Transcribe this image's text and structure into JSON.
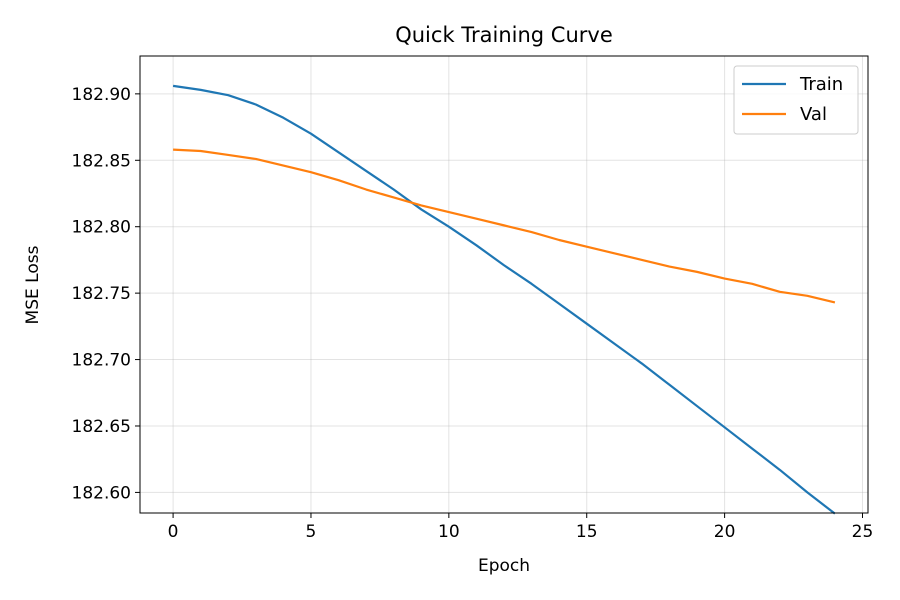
{
  "chart_data": {
    "type": "line",
    "title": "Quick Training Curve",
    "xlabel": "Epoch",
    "ylabel": "MSE Loss",
    "xlim": [
      -1.2,
      25.2
    ],
    "ylim": [
      182.5845,
      182.9285
    ],
    "xticks": [
      0,
      5,
      10,
      15,
      20,
      25
    ],
    "yticks": [
      182.6,
      182.65,
      182.7,
      182.75,
      182.8,
      182.85,
      182.9
    ],
    "grid": true,
    "legend_position": "top-right",
    "x": [
      0,
      1,
      2,
      3,
      4,
      5,
      6,
      7,
      8,
      9,
      10,
      11,
      12,
      13,
      14,
      15,
      16,
      17,
      18,
      19,
      20,
      21,
      22,
      23,
      24
    ],
    "series": [
      {
        "name": "Train",
        "color": "#1f77b4",
        "values": [
          182.906,
          182.903,
          182.899,
          182.892,
          182.882,
          182.87,
          182.856,
          182.842,
          182.828,
          182.813,
          182.8,
          182.786,
          182.771,
          182.757,
          182.742,
          182.727,
          182.712,
          182.697,
          182.681,
          182.665,
          182.649,
          182.633,
          182.617,
          182.6,
          182.584
        ]
      },
      {
        "name": "Val",
        "color": "#ff7f0e",
        "values": [
          182.858,
          182.857,
          182.854,
          182.851,
          182.846,
          182.841,
          182.835,
          182.828,
          182.822,
          182.816,
          182.811,
          182.806,
          182.801,
          182.796,
          182.79,
          182.785,
          182.78,
          182.775,
          182.77,
          182.766,
          182.761,
          182.757,
          182.751,
          182.748,
          182.743
        ]
      }
    ]
  }
}
